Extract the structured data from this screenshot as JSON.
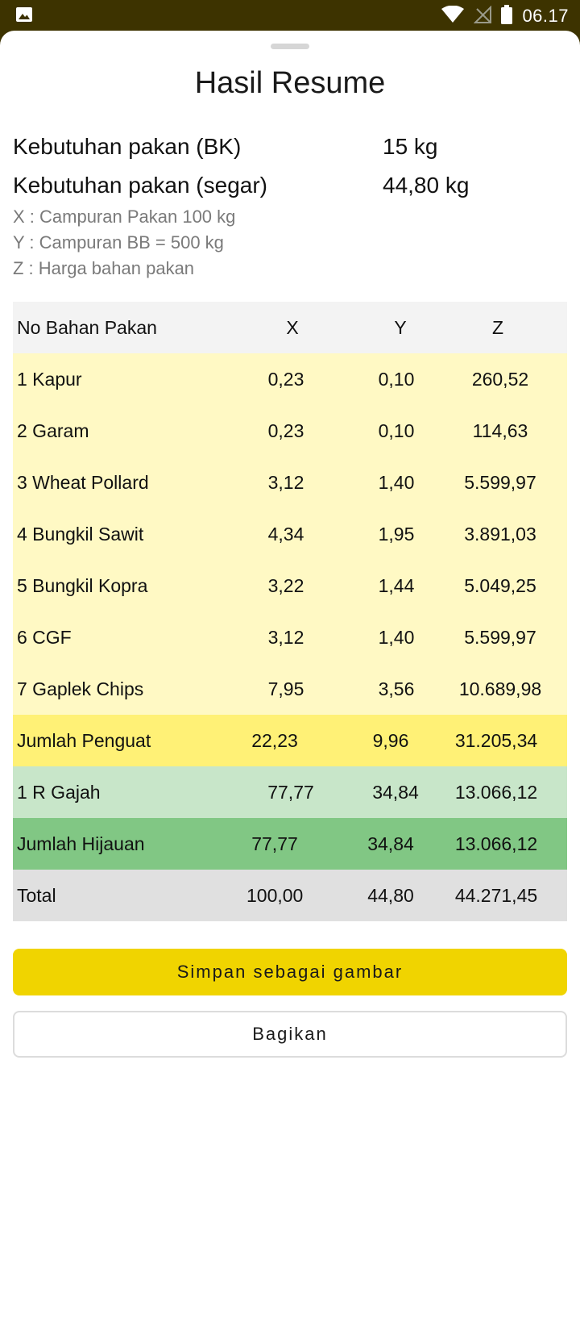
{
  "status_bar": {
    "time": "06.17",
    "icons": [
      "image-icon",
      "wifi-icon",
      "no-signal-icon",
      "battery-icon"
    ]
  },
  "sheet": {
    "title": "Hasil Resume",
    "needs": [
      {
        "label": "Kebutuhan pakan (BK)",
        "value": "15 kg"
      },
      {
        "label": "Kebutuhan pakan (segar)",
        "value": "44,80 kg"
      }
    ],
    "notes": [
      "X : Campuran Pakan 100 kg",
      "Y : Campuran BB = 500 kg",
      "Z : Harga bahan pakan"
    ]
  },
  "table": {
    "headers": {
      "name": "No Bahan Pakan",
      "x": "X",
      "y": "Y",
      "z": "Z"
    },
    "items": [
      {
        "name": "1 Kapur",
        "x": "0,23",
        "y": "0,10",
        "z": "260,52"
      },
      {
        "name": "2 Garam",
        "x": "0,23",
        "y": "0,10",
        "z": "114,63"
      },
      {
        "name": "3 Wheat Pollard",
        "x": "3,12",
        "y": "1,40",
        "z": "5.599,97"
      },
      {
        "name": "4 Bungkil Sawit",
        "x": "4,34",
        "y": "1,95",
        "z": "3.891,03"
      },
      {
        "name": "5 Bungkil Kopra",
        "x": "3,22",
        "y": "1,44",
        "z": "5.049,25"
      },
      {
        "name": "6 CGF",
        "x": "3,12",
        "y": "1,40",
        "z": "5.599,97"
      },
      {
        "name": "7 Gaplek Chips",
        "x": "7,95",
        "y": "3,56",
        "z": "10.689,98"
      }
    ],
    "jumlah_penguat": {
      "name": "Jumlah Penguat",
      "x": "22,23",
      "y": "9,96",
      "z": "31.205,34"
    },
    "hijauan_items": [
      {
        "name": "1 R Gajah",
        "x": "77,77",
        "y": "34,84",
        "z": "13.066,12"
      }
    ],
    "jumlah_hijauan": {
      "name": "Jumlah Hijauan",
      "x": "77,77",
      "y": "34,84",
      "z": "13.066,12"
    },
    "total": {
      "name": "Total",
      "x": "100,00",
      "y": "44,80",
      "z": "44.271,45"
    }
  },
  "actions": {
    "save_label": "Simpan sebagai gambar",
    "share_label": "Bagikan"
  },
  "colors": {
    "status_bar": "#3d3300",
    "header_row": "#f3f3f3",
    "item_row": "#fff9c4",
    "penguat_sum_row": "#fff176",
    "hijauan_row": "#c8e6c9",
    "hijauan_sum_row": "#81c784",
    "total_row": "#e0e0e0",
    "save_button": "#f0d400"
  }
}
